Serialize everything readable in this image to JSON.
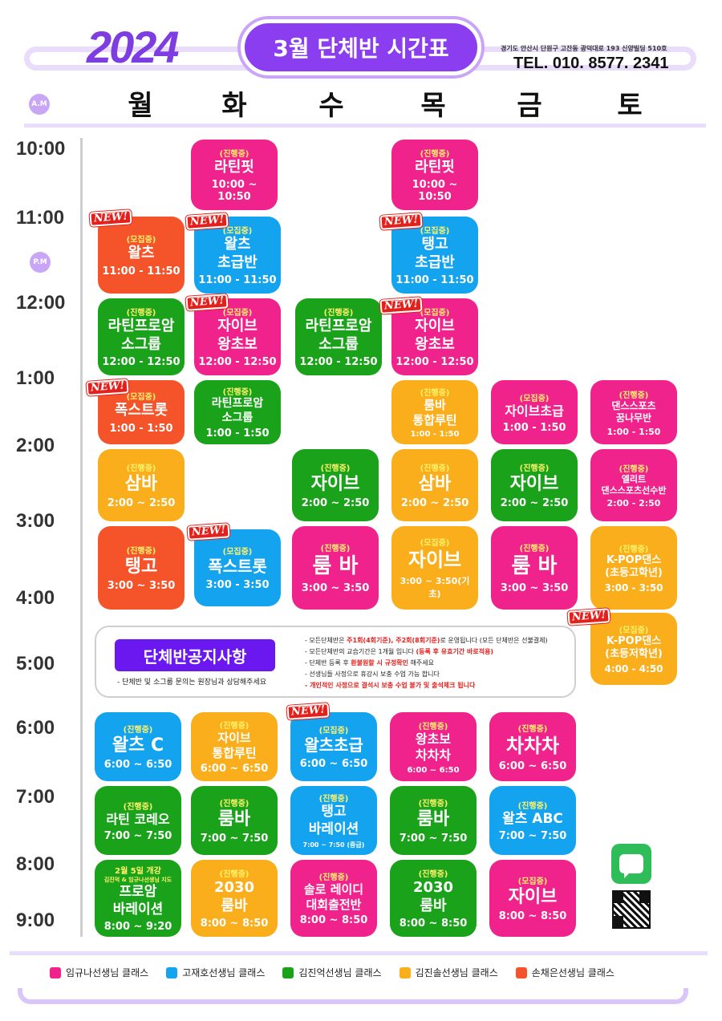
{
  "header": {
    "year": "2024",
    "title": "3월 단체반 시간표",
    "address": "경기도 안산시 단원구 고잔동 광덕대로 193 신양빌딩 510호",
    "tel": "TEL. 010. 8577. 2341",
    "am_label": "A.M",
    "pm_label": "P.M"
  },
  "days": [
    "월",
    "화",
    "수",
    "목",
    "금",
    "토"
  ],
  "times": [
    "10:00",
    "11:00",
    "12:00",
    "1:00",
    "2:00",
    "3:00",
    "4:00",
    "5:00",
    "6:00",
    "7:00",
    "8:00",
    "9:00"
  ],
  "new_label": "NEW!",
  "classes": [
    {
      "status": "(진행중)",
      "name": "라틴핏",
      "time": "10:00 ~ 10:50",
      "teacher": "임규나선생님"
    },
    {
      "status": "(진행중)",
      "name": "라틴핏",
      "time": "10:00 ~ 10:50",
      "teacher": "임규나선생님"
    },
    {
      "status": "(모집중)",
      "name": "왈츠",
      "time": "11:00 - 11:50",
      "teacher": "손채은선생님"
    },
    {
      "status": "(모집중)",
      "name": "왈츠\n초급반",
      "time": "11:00 - 11:50",
      "teacher": "고재호선생님"
    },
    {
      "status": "(모집중)",
      "name": "탱고\n초급반",
      "time": "11:00 - 11:50",
      "teacher": "고재호선생님"
    },
    {
      "status": "(진행중)",
      "name": "라틴프로암\n소그룹",
      "time": "12:00 - 12:50",
      "teacher": "김진억선생님"
    },
    {
      "status": "(모집중)",
      "name": "자이브\n왕초보",
      "time": "12:00 - 12:50",
      "teacher": "임규나선생님"
    },
    {
      "status": "(진행중)",
      "name": "라틴프로암\n소그룹",
      "time": "12:00 - 12:50",
      "teacher": "김진억선생님"
    },
    {
      "status": "(모집중)",
      "name": "자이브\n왕초보",
      "time": "12:00 - 12:50",
      "teacher": "임규나선생님"
    },
    {
      "status": "(모집중)",
      "name": "폭스트롯",
      "time": "1:00 - 1:50",
      "teacher": "손채은선생님"
    },
    {
      "status": "(진행중)",
      "name": "라틴프로암\n소그룹",
      "time": "1:00 - 1:50",
      "teacher": "김진억선생님"
    },
    {
      "status": "(진행중)",
      "name": "룸바\n통합루틴",
      "time": "1:00 - 1:50",
      "teacher": "김진솔선생님"
    },
    {
      "status": "(모집중)",
      "name": "자이브초급",
      "time": "1:00 - 1:50",
      "teacher": "임규나선생님"
    },
    {
      "status": "(진행중)",
      "name": "댄스스포츠\n꿈나무반",
      "time": "1:00 - 1:50",
      "teacher": "임규나선생님"
    },
    {
      "status": "(진행중)",
      "name": "삼바",
      "time": "2:00 ~ 2:50",
      "teacher": "김진솔선생님"
    },
    {
      "status": "(진행중)",
      "name": "자이브",
      "time": "2:00 ~ 2:50",
      "teacher": "김진억선생님"
    },
    {
      "status": "(진행중)",
      "name": "삼바",
      "time": "2:00 ~ 2:50",
      "teacher": "김진솔선생님"
    },
    {
      "status": "(진행중)",
      "name": "자이브",
      "time": "2:00 ~ 2:50",
      "teacher": "김진억선생님"
    },
    {
      "status": "(진행중)",
      "name": "엘리트\n댄스스포츠선수반",
      "time": "2:00 - 2:50",
      "teacher": "임규나선생님"
    },
    {
      "status": "(진행중)",
      "name": "탱고",
      "time": "3:00 ~ 3:50",
      "teacher": "손채은선생님"
    },
    {
      "status": "(모집중)",
      "name": "폭스트롯",
      "time": "3:00 - 3:50",
      "teacher": "고재호선생님"
    },
    {
      "status": "(진행중)",
      "name": "룸 바",
      "time": "3:00 ~ 3:50",
      "teacher": "임규나선생님"
    },
    {
      "status": "(모집중)",
      "name": "자이브",
      "time": "3:00 ~ 3:50(기초)",
      "teacher": "김진솔선생님"
    },
    {
      "status": "(진행중)",
      "name": "룸 바",
      "time": "3:00 ~ 3:50",
      "teacher": "임규나선생님"
    },
    {
      "status": "(진행중)",
      "name": "K-POP댄스\n(초등고학년)",
      "time": "3:00 - 3:50",
      "teacher": "김진솔선생님"
    },
    {
      "status": "(모집중)",
      "name": "K-POP댄스\n(초등저학년)",
      "time": "4:00 - 4:50",
      "teacher": "김진솔선생님"
    },
    {
      "status": "(진행중)",
      "name": "왈츠 C",
      "time": "6:00 ~ 6:50",
      "teacher": "고재호선생님"
    },
    {
      "status": "(진행중)",
      "name": "자이브\n통합루틴",
      "time": "6:00 ~ 6:50",
      "teacher": "김진솔선생님"
    },
    {
      "status": "(모집중)",
      "name": "왈츠초급",
      "time": "6:00 ~ 6:50",
      "teacher": "고재호선생님"
    },
    {
      "status": "(진행중)",
      "name": "왕초보\n차차차",
      "time": "6:00 ~ 6:50",
      "teacher": "임규나선생님"
    },
    {
      "status": "(진행중)",
      "name": "차차차",
      "time": "6:00 ~ 6:50",
      "teacher": "임규나선생님"
    },
    {
      "status": "(진행중)",
      "name": "라틴 코레오",
      "time": "7:00 ~ 7:50",
      "teacher": "김진억선생님"
    },
    {
      "status": "(진행중)",
      "name": "룸바",
      "time": "7:00 ~ 7:50",
      "teacher": "김진억선생님"
    },
    {
      "status": "(진행중)",
      "name": "탱고\n바레이션",
      "time": "7:00 ~ 7:50 (중급)",
      "teacher": "고재호선생님"
    },
    {
      "status": "(진행중)",
      "name": "룸바",
      "time": "7:00 ~ 7:50",
      "teacher": "김진억선생님"
    },
    {
      "status": "(진행중)",
      "name": "왈츠 ABC",
      "time": "7:00 ~ 7:50",
      "teacher": "고재호선생님"
    },
    {
      "status": "2월 5일 개강",
      "note": "김진억 & 임규나선생님 지도",
      "name": "프로암\n바레이션",
      "time": "8:00 ~ 9:20",
      "teacher": "김진억선생님"
    },
    {
      "status": "(진행중)",
      "name": "2030\n룸바",
      "time": "8:00 ~ 8:50",
      "teacher": "김진솔선생님"
    },
    {
      "status": "(진행중)",
      "name": "솔로 레이디\n대회출전반",
      "time": "8:00 ~ 8:50",
      "teacher": "임규나선생님"
    },
    {
      "status": "(진행중)",
      "name": "2030\n룸바",
      "time": "8:00 ~ 8:50",
      "teacher": "김진억선생님"
    },
    {
      "status": "(모집중)",
      "name": "자이브",
      "time": "8:00 ~ 8:50",
      "teacher": "임규나선생님"
    }
  ],
  "notice": {
    "title": "단체반공지사항",
    "left_text": "- 단체반 및 소그룹 문의는 원장님과 상담해주세요",
    "items": [
      {
        "text_a": "- 모든단체반은 ",
        "hl": "주1회(4회기준), 주2회(8회기준)",
        "text_b": "로 운영됩니다 (모든 단체반은 선불결제)"
      },
      {
        "text_a": "- 모든단체반의 교습기간은 1개월 입니다 ",
        "hl": "(등록 후 유효기간 바로적용)",
        "text_b": ""
      },
      {
        "text_a": "- 단체반 등록 후 ",
        "hl": "환불원할 시 규정확인",
        "text_b": " 해주세요"
      },
      {
        "text_a": "- 선생님들 사정으로 휴강시 보충 수업 가능 합니다",
        "hl": "",
        "text_b": ""
      },
      {
        "text_a": "",
        "hl": "- 개인적인 사정으로 결석시 보충 수업 불가 및 출석체크 됩니다",
        "text_b": ""
      }
    ]
  },
  "legend": [
    {
      "label": "임규나선생님 클래스",
      "color": "#f0238c"
    },
    {
      "label": "고재호선생님 클래스",
      "color": "#14a4ef"
    },
    {
      "label": "김진억선생님 클래스",
      "color": "#1aa31a"
    },
    {
      "label": "김진솔선생님 클래스",
      "color": "#fbae1b"
    },
    {
      "label": "손채은선생님 클래스",
      "color": "#f5532a"
    }
  ]
}
